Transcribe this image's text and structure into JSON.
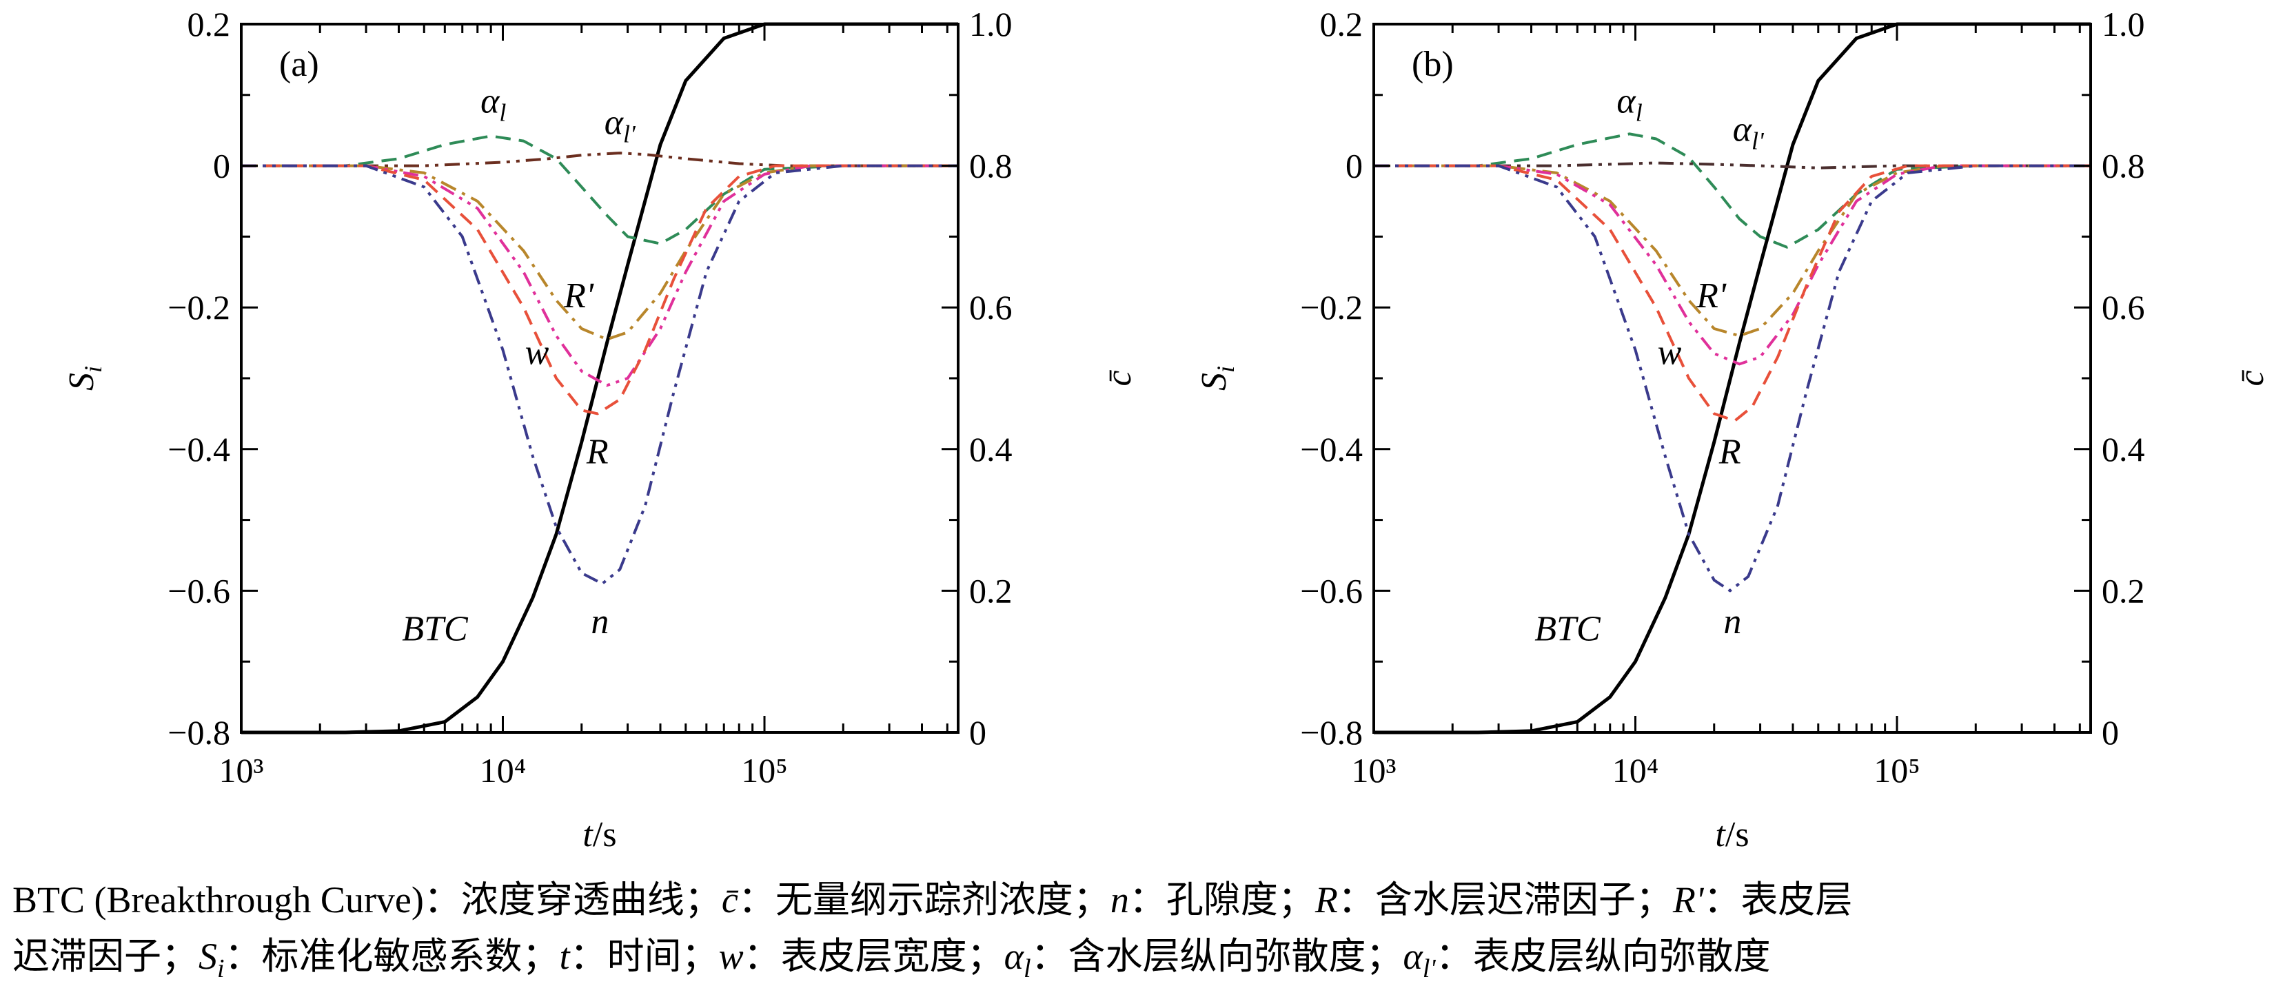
{
  "panels": [
    {
      "label": "(a)",
      "chart_data": {
        "type": "line",
        "x_scale": "log",
        "xlim": [
          1000,
          550000
        ],
        "xlabel_italic": "t",
        "xlabel_rest": "/s",
        "ylabel_left": "S_i",
        "ylim_left": [
          -0.8,
          0.2
        ],
        "ylabel_right": "c̄",
        "ylim_right": [
          0,
          1.0
        ],
        "x_ticks": [
          "10³",
          "10⁴",
          "10⁵"
        ],
        "y_ticks_left": [
          "0.2",
          "0",
          "−0.2",
          "−0.4",
          "−0.6",
          "−0.8"
        ],
        "y_ticks_right": [
          "1.0",
          "0.8",
          "0.6",
          "0.4",
          "0.2",
          "0"
        ],
        "grid": false,
        "series": [
          {
            "name": "BTC",
            "axis": "right",
            "color": "#000000",
            "style": "solid",
            "x": [
              1000,
              2500,
              4000,
              6000,
              8000,
              10000,
              13000,
              16000,
              20000,
              25000,
              30000,
              40000,
              50000,
              70000,
              100000,
              200000,
              550000
            ],
            "y": [
              0,
              0,
              0.002,
              0.015,
              0.05,
              0.1,
              0.19,
              0.28,
              0.41,
              0.55,
              0.66,
              0.83,
              0.92,
              0.98,
              1.0,
              1.0,
              1.0
            ]
          },
          {
            "name": "αl",
            "axis": "left",
            "color": "#2e8b57",
            "style": "dash",
            "x": [
              1000,
              2500,
              4000,
              6000,
              9000,
              12000,
              16000,
              20000,
              25000,
              30000,
              40000,
              50000,
              70000,
              100000,
              200000,
              550000
            ],
            "y": [
              0,
              0,
              0.01,
              0.03,
              0.042,
              0.035,
              0.01,
              -0.03,
              -0.07,
              -0.1,
              -0.11,
              -0.09,
              -0.04,
              -0.005,
              0,
              0
            ]
          },
          {
            "name": "αl'",
            "axis": "left",
            "color": "#6b2e1f",
            "style": "dashdotdot",
            "x": [
              1000,
              5000,
              10000,
              15000,
              20000,
              28000,
              35000,
              50000,
              80000,
              120000,
              550000
            ],
            "y": [
              0,
              0,
              0.005,
              0.01,
              0.015,
              0.018,
              0.016,
              0.01,
              0.003,
              0,
              0
            ]
          },
          {
            "name": "R'",
            "axis": "left",
            "color": "#b8862b",
            "style": "dashdot",
            "x": [
              1000,
              3000,
              5000,
              8000,
              12000,
              16000,
              20000,
              25000,
              30000,
              40000,
              50000,
              70000,
              100000,
              150000,
              550000
            ],
            "y": [
              0,
              0,
              -0.01,
              -0.05,
              -0.12,
              -0.19,
              -0.23,
              -0.245,
              -0.235,
              -0.18,
              -0.12,
              -0.04,
              -0.01,
              0,
              0
            ]
          },
          {
            "name": "w",
            "axis": "left",
            "color": "#e0309a",
            "style": "dashdotdot",
            "x": [
              1000,
              3000,
              5000,
              8000,
              12000,
              16000,
              20000,
              25000,
              30000,
              40000,
              50000,
              70000,
              100000,
              150000,
              550000
            ],
            "y": [
              0,
              0,
              -0.015,
              -0.06,
              -0.15,
              -0.24,
              -0.29,
              -0.31,
              -0.3,
              -0.23,
              -0.15,
              -0.05,
              -0.012,
              0,
              0
            ]
          },
          {
            "name": "R",
            "axis": "left",
            "color": "#e8503a",
            "style": "dash",
            "x": [
              1000,
              3000,
              5000,
              8000,
              12000,
              16000,
              20000,
              23000,
              28000,
              35000,
              45000,
              60000,
              80000,
              110000,
              550000
            ],
            "y": [
              0,
              0,
              -0.02,
              -0.09,
              -0.2,
              -0.3,
              -0.345,
              -0.35,
              -0.33,
              -0.26,
              -0.16,
              -0.06,
              -0.015,
              0,
              0
            ]
          },
          {
            "name": "n",
            "axis": "left",
            "color": "#3a3a8c",
            "style": "dashdotdot",
            "x": [
              1000,
              3000,
              5000,
              7000,
              10000,
              13000,
              16000,
              20000,
              24000,
              28000,
              35000,
              45000,
              60000,
              80000,
              110000,
              200000,
              550000
            ],
            "y": [
              0,
              0,
              -0.03,
              -0.1,
              -0.26,
              -0.41,
              -0.51,
              -0.575,
              -0.59,
              -0.57,
              -0.48,
              -0.32,
              -0.15,
              -0.05,
              -0.01,
              0,
              0
            ]
          }
        ],
        "curve_labels": [
          {
            "text": "BTC",
            "x": 5500,
            "y": -0.67,
            "italic": false
          },
          {
            "text": "αl",
            "sub": "l",
            "x": 9200,
            "y": 0.075
          },
          {
            "text": "αl'",
            "sub": "l",
            "x": 28000,
            "y": 0.045
          },
          {
            "text": "R'",
            "x": 19500,
            "y": -0.2
          },
          {
            "text": "w",
            "x": 13500,
            "y": -0.28
          },
          {
            "text": "R",
            "x": 23000,
            "y": -0.42
          },
          {
            "text": "n",
            "x": 23500,
            "y": -0.66
          }
        ]
      }
    },
    {
      "label": "(b)",
      "chart_data": {
        "type": "line",
        "x_scale": "log",
        "xlim": [
          1000,
          550000
        ],
        "xlabel_italic": "t",
        "xlabel_rest": "/s",
        "ylabel_left": "S_i",
        "ylim_left": [
          -0.8,
          0.2
        ],
        "ylabel_right": "c̄",
        "ylim_right": [
          0,
          1.0
        ],
        "x_ticks": [
          "10³",
          "10⁴",
          "10⁵"
        ],
        "y_ticks_left": [
          "0.2",
          "0",
          "−0.2",
          "−0.4",
          "−0.6",
          "−0.8"
        ],
        "y_ticks_right": [
          "1.0",
          "0.8",
          "0.6",
          "0.4",
          "0.2",
          "0"
        ],
        "grid": false,
        "series": [
          {
            "name": "BTC",
            "axis": "right",
            "color": "#000000",
            "style": "solid",
            "x": [
              1000,
              2500,
              4000,
              6000,
              8000,
              10000,
              13000,
              16000,
              20000,
              25000,
              30000,
              40000,
              50000,
              70000,
              100000,
              200000,
              550000
            ],
            "y": [
              0,
              0,
              0.002,
              0.015,
              0.05,
              0.1,
              0.19,
              0.28,
              0.41,
              0.55,
              0.66,
              0.83,
              0.92,
              0.98,
              1.0,
              1.0,
              1.0
            ]
          },
          {
            "name": "αl",
            "axis": "left",
            "color": "#2e8b57",
            "style": "dash",
            "x": [
              1000,
              2500,
              4000,
              6000,
              9500,
              12000,
              16000,
              20000,
              25000,
              30000,
              38000,
              50000,
              70000,
              100000,
              200000,
              550000
            ],
            "y": [
              0,
              0,
              0.01,
              0.03,
              0.045,
              0.038,
              0.012,
              -0.03,
              -0.075,
              -0.1,
              -0.115,
              -0.09,
              -0.04,
              -0.005,
              0,
              0
            ]
          },
          {
            "name": "αl'",
            "axis": "left",
            "color": "#4a2e2e",
            "style": "dashdotdot",
            "x": [
              1000,
              5000,
              12000,
              20000,
              30000,
              50000,
              100000,
              550000
            ],
            "y": [
              0,
              0,
              0.004,
              0.002,
              0,
              -0.003,
              0,
              0
            ]
          },
          {
            "name": "R'",
            "axis": "left",
            "color": "#b8862b",
            "style": "dashdot",
            "x": [
              1000,
              3000,
              5000,
              8000,
              12000,
              16000,
              20000,
              25000,
              30000,
              40000,
              50000,
              70000,
              100000,
              150000,
              550000
            ],
            "y": [
              0,
              0,
              -0.01,
              -0.05,
              -0.12,
              -0.19,
              -0.23,
              -0.24,
              -0.23,
              -0.18,
              -0.12,
              -0.04,
              -0.01,
              0,
              0
            ]
          },
          {
            "name": "w",
            "axis": "left",
            "color": "#e0309a",
            "style": "dashdotdot",
            "x": [
              1000,
              3000,
              5000,
              8000,
              12000,
              16000,
              20000,
              25000,
              30000,
              40000,
              50000,
              70000,
              100000,
              150000,
              550000
            ],
            "y": [
              0,
              0,
              -0.012,
              -0.055,
              -0.14,
              -0.22,
              -0.265,
              -0.28,
              -0.27,
              -0.21,
              -0.14,
              -0.05,
              -0.012,
              0,
              0
            ]
          },
          {
            "name": "R",
            "axis": "left",
            "color": "#e8503a",
            "style": "dash",
            "x": [
              1000,
              3000,
              5000,
              8000,
              12000,
              16000,
              20000,
              24000,
              28000,
              35000,
              45000,
              60000,
              80000,
              110000,
              550000
            ],
            "y": [
              0,
              0,
              -0.02,
              -0.09,
              -0.2,
              -0.3,
              -0.35,
              -0.36,
              -0.34,
              -0.27,
              -0.17,
              -0.065,
              -0.015,
              0,
              0
            ]
          },
          {
            "name": "n",
            "axis": "left",
            "color": "#3a3a8c",
            "style": "dashdotdot",
            "x": [
              1000,
              3000,
              5000,
              7000,
              10000,
              13000,
              16000,
              20000,
              23000,
              27000,
              35000,
              45000,
              60000,
              80000,
              110000,
              200000,
              550000
            ],
            "y": [
              0,
              0,
              -0.03,
              -0.1,
              -0.26,
              -0.41,
              -0.52,
              -0.585,
              -0.6,
              -0.58,
              -0.48,
              -0.32,
              -0.15,
              -0.05,
              -0.01,
              0,
              0
            ]
          }
        ],
        "curve_labels": [
          {
            "text": "BTC",
            "x": 5500,
            "y": -0.67,
            "italic": false
          },
          {
            "text": "αl",
            "sub": "l",
            "x": 9500,
            "y": 0.075
          },
          {
            "text": "αl'",
            "sub": "l",
            "x": 27000,
            "y": 0.035
          },
          {
            "text": "R'",
            "x": 19500,
            "y": -0.2
          },
          {
            "text": "w",
            "x": 13500,
            "y": -0.28
          },
          {
            "text": "R",
            "x": 23000,
            "y": -0.42
          },
          {
            "text": "n",
            "x": 23500,
            "y": -0.66
          }
        ]
      }
    }
  ],
  "caption": {
    "line1": [
      {
        "t": "BTC (Breakthrough Curve)：浓度穿透曲线；",
        "it": false
      },
      {
        "t": "c̄",
        "it": true
      },
      {
        "t": "：无量纲示踪剂浓度；",
        "it": false
      },
      {
        "t": "n",
        "it": true
      },
      {
        "t": "：孔隙度；",
        "it": false
      },
      {
        "t": "R",
        "it": true
      },
      {
        "t": "：含水层迟滞因子；",
        "it": false
      },
      {
        "t": "R'",
        "it": true
      },
      {
        "t": "：表皮层",
        "it": false
      }
    ],
    "line2": [
      {
        "t": "迟滞因子；",
        "it": false
      },
      {
        "t": "S",
        "it": true
      },
      {
        "t": "i",
        "it": true,
        "sub": true
      },
      {
        "t": "：标准化敏感系数；",
        "it": false
      },
      {
        "t": "t",
        "it": true
      },
      {
        "t": "：时间；",
        "it": false
      },
      {
        "t": "w",
        "it": true
      },
      {
        "t": "：表皮层宽度；",
        "it": false
      },
      {
        "t": "α",
        "it": true
      },
      {
        "t": "l",
        "it": true,
        "sub": true
      },
      {
        "t": "：含水层纵向弥散度；",
        "it": false
      },
      {
        "t": "α",
        "it": true
      },
      {
        "t": "l'",
        "it": true,
        "sub": true
      },
      {
        "t": "：表皮层纵向弥散度",
        "it": false
      }
    ]
  }
}
